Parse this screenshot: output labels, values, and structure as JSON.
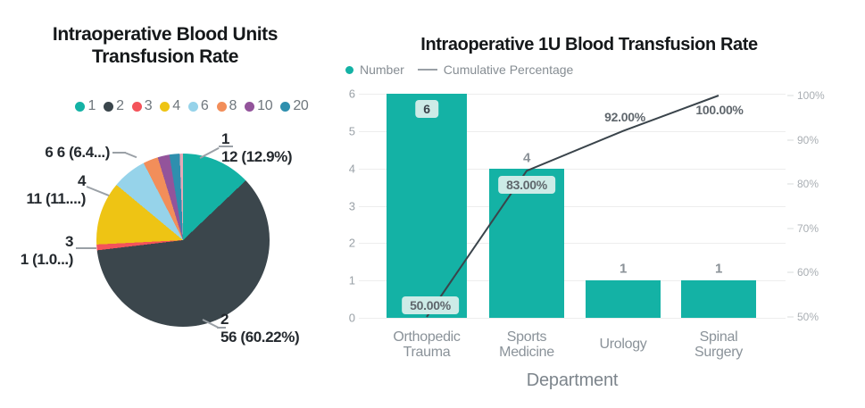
{
  "left_chart": {
    "title_line1": "Intraoperative Blood Units",
    "title_line2": "Transfusion Rate",
    "legend": [
      {
        "label": "1",
        "color": "#14b2a5"
      },
      {
        "label": "2",
        "color": "#3b464c"
      },
      {
        "label": "3",
        "color": "#f4535a"
      },
      {
        "label": "4",
        "color": "#eec414"
      },
      {
        "label": "6",
        "color": "#96d3ea"
      },
      {
        "label": "8",
        "color": "#f28e5a"
      },
      {
        "label": "10",
        "color": "#93549b"
      },
      {
        "label": "20",
        "color": "#2e8fae"
      }
    ],
    "callouts": [
      {
        "line1": "1",
        "line2": "12 (12.9%)"
      },
      {
        "line1": "6 6 (6.4...)",
        "line2": ""
      },
      {
        "line1": "4",
        "line2": "11 (11....)"
      },
      {
        "line1": "3",
        "line2": "1 (1.0...)"
      },
      {
        "line1": "2",
        "line2": "56 (60.22%)"
      }
    ]
  },
  "right_chart": {
    "title": "Intraoperative 1U Blood Transfusion Rate",
    "legend": {
      "number_label": "Number",
      "cumulative_label": "Cumulative Percentage"
    },
    "xlabel": "Department"
  },
  "chart_data": [
    {
      "type": "pie",
      "title": "Intraoperative Blood Units Transfusion Rate",
      "legend_entries": [
        "1",
        "2",
        "3",
        "4",
        "6",
        "8",
        "10",
        "20"
      ],
      "slices": [
        {
          "category": "1",
          "count": 12,
          "percent": 12.9,
          "color": "#14b2a5",
          "label": "1 12 (12.9%)"
        },
        {
          "category": "2",
          "count": 56,
          "percent": 60.22,
          "color": "#3b464c",
          "label": "2 56 (60.22%)"
        },
        {
          "category": "3",
          "count": 1,
          "percent": 1.08,
          "color": "#f4535a",
          "label": "3 1 (1.0...)"
        },
        {
          "category": "4",
          "count": 11,
          "percent": 11.83,
          "color": "#eec414",
          "label": "4 11 (11....)"
        },
        {
          "category": "6",
          "count": 6,
          "percent": 6.45,
          "color": "#96d3ea",
          "label": "6 6 (6.4...)"
        },
        {
          "category": "8",
          "percent": 2.8,
          "color": "#f28e5a",
          "label": ""
        },
        {
          "category": "10",
          "percent": 2.2,
          "color": "#93549b",
          "label": ""
        },
        {
          "category": "20",
          "percent": 1.9,
          "color": "#2e8fae",
          "label": ""
        },
        {
          "category": "sliver",
          "percent": 0.62,
          "color": "#e5a9b6",
          "label": ""
        }
      ]
    },
    {
      "type": "bar",
      "subtype": "pareto",
      "title": "Intraoperative 1U Blood Transfusion Rate",
      "categories": [
        "Orthopedic Trauma",
        "Sports Medicine",
        "Urology",
        "Spinal Surgery"
      ],
      "series": [
        {
          "name": "Number",
          "chart": "bar",
          "axis": "left",
          "color": "#14b2a5",
          "values": [
            6,
            4,
            1,
            1
          ],
          "value_labels": [
            "6",
            "4",
            "1",
            "1"
          ]
        },
        {
          "name": "Cumulative Percentage",
          "chart": "line",
          "axis": "right",
          "color": "#3a444b",
          "values": [
            50,
            83,
            92,
            100
          ],
          "value_labels": [
            "50.00%",
            "83.00%",
            "92.00%",
            "100.00%"
          ]
        }
      ],
      "left_axis": {
        "min": 0,
        "max": 6,
        "ticks": [
          "0",
          "1",
          "2",
          "3",
          "4",
          "5",
          "6"
        ]
      },
      "right_axis": {
        "min": 50,
        "max": 100,
        "ticks": [
          "50%",
          "60%",
          "70%",
          "80%",
          "90%",
          "100%"
        ]
      },
      "xlabel": "Department",
      "grid": true,
      "legend_position": "top-left"
    }
  ]
}
